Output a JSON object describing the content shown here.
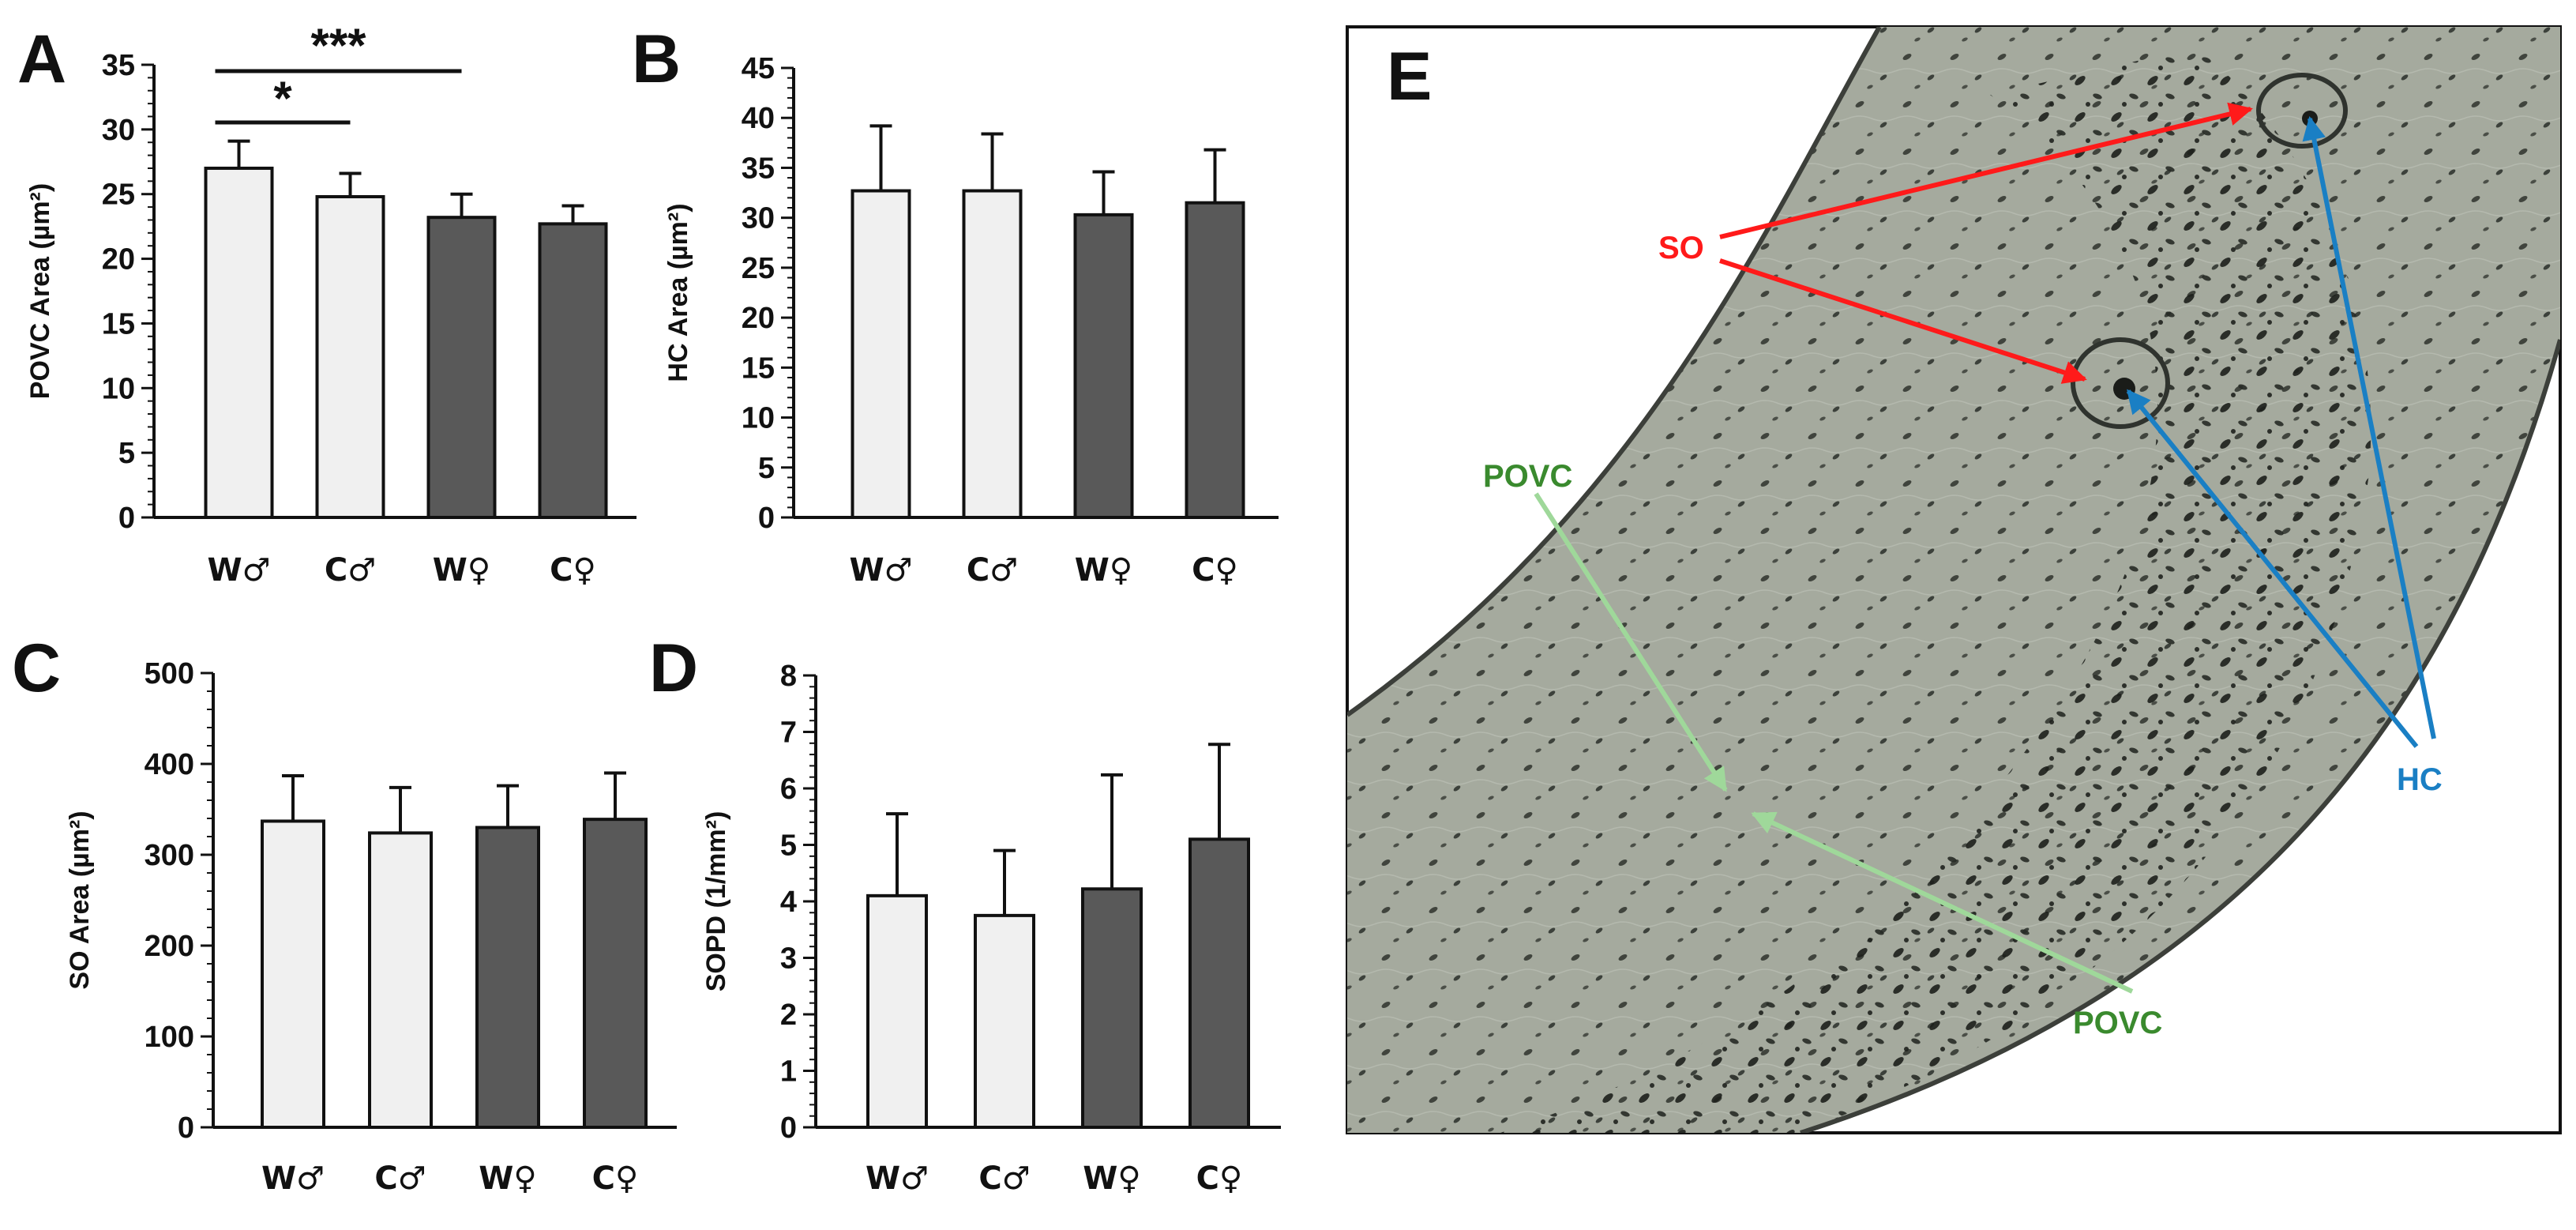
{
  "colors": {
    "male_fill": "#f0f0f0",
    "female_fill": "#595959",
    "so_arrow": "#ff1a1a",
    "hc_arrow": "#1a7fc4",
    "povc_label": "#3a8a2e",
    "povc_arrow": "#9fd89a"
  },
  "chart_data": [
    {
      "panel": "A",
      "type": "bar",
      "ylabel": "POVC Area (µm²)",
      "categories": [
        "W♂",
        "C♂",
        "W♀",
        "C♀"
      ],
      "values": [
        27.0,
        24.8,
        23.2,
        22.7
      ],
      "errors": [
        2.1,
        1.8,
        1.8,
        1.4
      ],
      "ylim": [
        0,
        35
      ],
      "yticks": [
        0,
        5,
        10,
        15,
        20,
        25,
        30,
        35
      ],
      "significance": [
        {
          "from": 0,
          "to": 1,
          "label": "*"
        },
        {
          "from": 0,
          "to": 2,
          "label": "***"
        }
      ]
    },
    {
      "panel": "B",
      "type": "bar",
      "ylabel": "HC Area (µm²)",
      "categories": [
        "W♂",
        "C♂",
        "W♀",
        "C♀"
      ],
      "values": [
        32.7,
        32.7,
        30.3,
        31.5
      ],
      "errors": [
        6.5,
        5.7,
        4.3,
        5.3
      ],
      "ylim": [
        0,
        45
      ],
      "yticks": [
        0,
        5,
        10,
        15,
        20,
        25,
        30,
        35,
        40,
        45
      ],
      "significance": []
    },
    {
      "panel": "C",
      "type": "bar",
      "ylabel": "SO Area (µm²)",
      "categories": [
        "W♂",
        "C♂",
        "W♀",
        "C♀"
      ],
      "values": [
        337,
        324,
        330,
        339
      ],
      "errors": [
        50,
        50,
        46,
        51
      ],
      "ylim": [
        0,
        500
      ],
      "yticks": [
        0,
        100,
        200,
        300,
        400,
        500
      ],
      "significance": []
    },
    {
      "panel": "D",
      "type": "bar",
      "ylabel": "SOPD (1/mm²)",
      "categories": [
        "W♂",
        "C♂",
        "W♀",
        "C♀"
      ],
      "values": [
        4.1,
        3.75,
        4.22,
        5.1
      ],
      "errors": [
        1.45,
        1.15,
        2.02,
        1.68
      ],
      "ylim": [
        0,
        8
      ],
      "yticks": [
        0,
        1,
        2,
        3,
        4,
        5,
        6,
        7,
        8
      ],
      "significance": []
    }
  ],
  "micrograph": {
    "panel": "E",
    "labels": {
      "so": "SO",
      "hc": "HC",
      "povc_top": "POVC",
      "povc_bottom": "POVC"
    }
  }
}
